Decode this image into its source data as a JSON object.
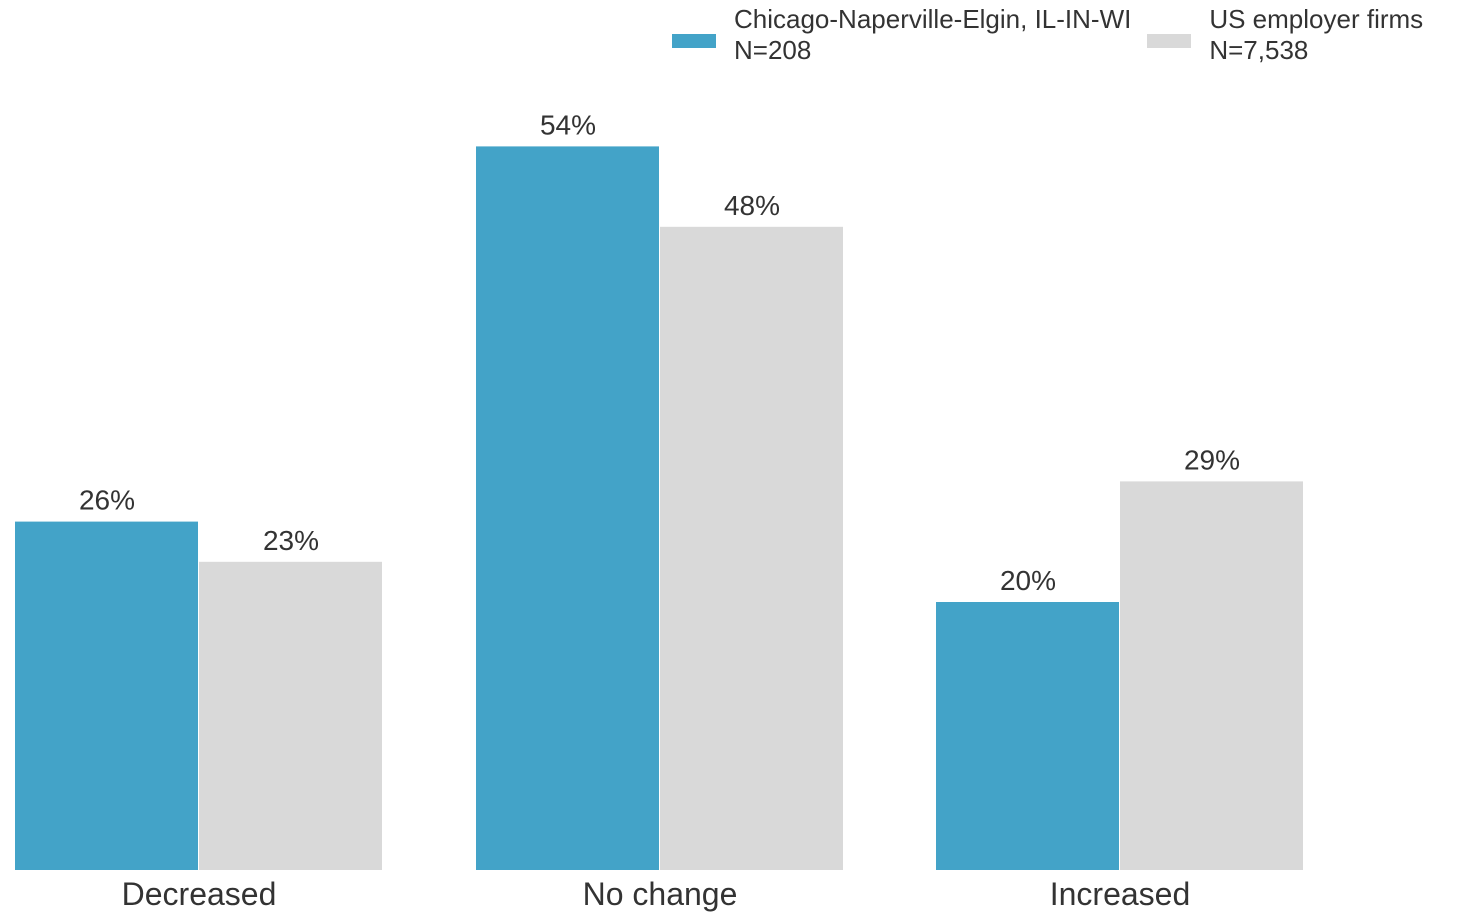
{
  "chart_data": {
    "type": "bar",
    "categories": [
      "Decreased",
      "No change",
      "Increased"
    ],
    "series": [
      {
        "name": "Chicago-Naperville-Elgin, IL-IN-WI",
        "sample": "N=208",
        "color": "#43a3c8",
        "values": [
          26,
          54,
          20
        ],
        "labels": [
          "26%",
          "54%",
          "20%"
        ]
      },
      {
        "name": "US employer firms",
        "sample": "N=7,538",
        "color": "#d9d9d9",
        "values": [
          23,
          48,
          29
        ],
        "labels": [
          "23%",
          "48%",
          "29%"
        ]
      }
    ],
    "ylim": [
      0,
      65
    ],
    "grid": false,
    "legend_position": "top-right",
    "title": "",
    "xlabel": "",
    "ylabel": ""
  }
}
